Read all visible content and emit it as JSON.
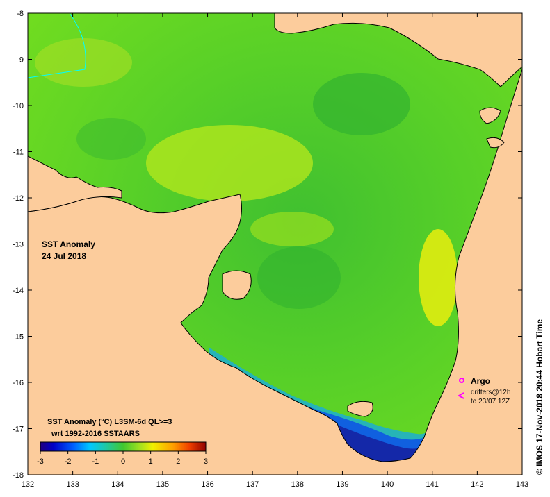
{
  "map": {
    "title": "SST Anomaly",
    "date": "24 Jul 2018",
    "lon_ticks": [
      "132",
      "133",
      "134",
      "135",
      "136",
      "137",
      "138",
      "139",
      "140",
      "141",
      "142",
      "143"
    ],
    "lat_ticks": [
      "-8",
      "-9",
      "-10",
      "-11",
      "-12",
      "-13",
      "-14",
      "-15",
      "-16",
      "-17",
      "-18"
    ],
    "lon_range": [
      132,
      143
    ],
    "lat_range": [
      -8,
      -18
    ]
  },
  "legend": {
    "line1": "SST Anomaly (°C) L3SM-6d QL>=3",
    "line2": "wrt 1992-2016 SSTAARS",
    "ticks": [
      "-3",
      "-2",
      "-1",
      "0",
      "1",
      "2",
      "3"
    ],
    "range": [
      -3,
      3
    ]
  },
  "annotation": {
    "argo": "Argo",
    "drifters": "drifters@12h",
    "to": "to 23/07 12Z",
    "argo_color": "#ff00ff"
  },
  "credit": "© IMOS 17-Nov-2018 20:44 Hobart Time",
  "colors": {
    "land": "#fccc9c",
    "sea_main": "#5cd22c",
    "sea_warm": "#c8ec1c",
    "sea_cold": "#1a3cc8"
  }
}
